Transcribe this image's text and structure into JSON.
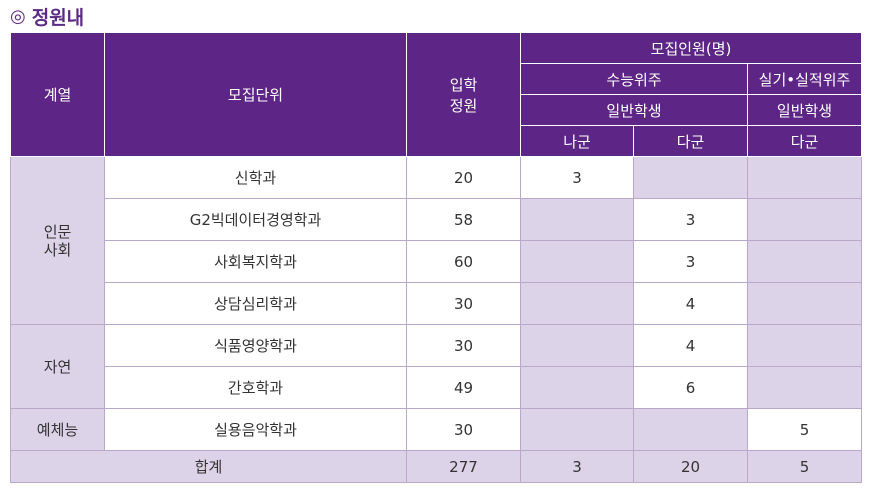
{
  "title": {
    "mark": "◎",
    "text": "정원내"
  },
  "header": {
    "category": "계열",
    "unit": "모집단위",
    "quota_line1": "입학",
    "quota_line2": "정원",
    "recruit": "모집인원(명)",
    "suneung": "수능위주",
    "practical": "실기•실적위주",
    "general1": "일반학생",
    "general2": "일반학생",
    "nagun": "나군",
    "dagun1": "다군",
    "dagun2": "다군"
  },
  "groups": {
    "humanities_line1": "인문",
    "humanities_line2": "사회",
    "science": "자연",
    "arts": "예체능"
  },
  "rows": [
    {
      "dept": "신학과",
      "quota": "20",
      "suneung_na": "3",
      "suneung_da": "",
      "practical_da": ""
    },
    {
      "dept": "G2빅데이터경영학과",
      "quota": "58",
      "suneung_na": "",
      "suneung_da": "3",
      "practical_da": ""
    },
    {
      "dept": "사회복지학과",
      "quota": "60",
      "suneung_na": "",
      "suneung_da": "3",
      "practical_da": ""
    },
    {
      "dept": "상담심리학과",
      "quota": "30",
      "suneung_na": "",
      "suneung_da": "4",
      "practical_da": ""
    },
    {
      "dept": "식품영양학과",
      "quota": "30",
      "suneung_na": "",
      "suneung_da": "4",
      "practical_da": ""
    },
    {
      "dept": "간호학과",
      "quota": "49",
      "suneung_na": "",
      "suneung_da": "6",
      "practical_da": ""
    },
    {
      "dept": "실용음악학과",
      "quota": "30",
      "suneung_na": "",
      "suneung_da": "",
      "practical_da": "5"
    }
  ],
  "total": {
    "label": "합계",
    "quota": "277",
    "suneung_na": "3",
    "suneung_da": "20",
    "practical_da": "5"
  }
}
